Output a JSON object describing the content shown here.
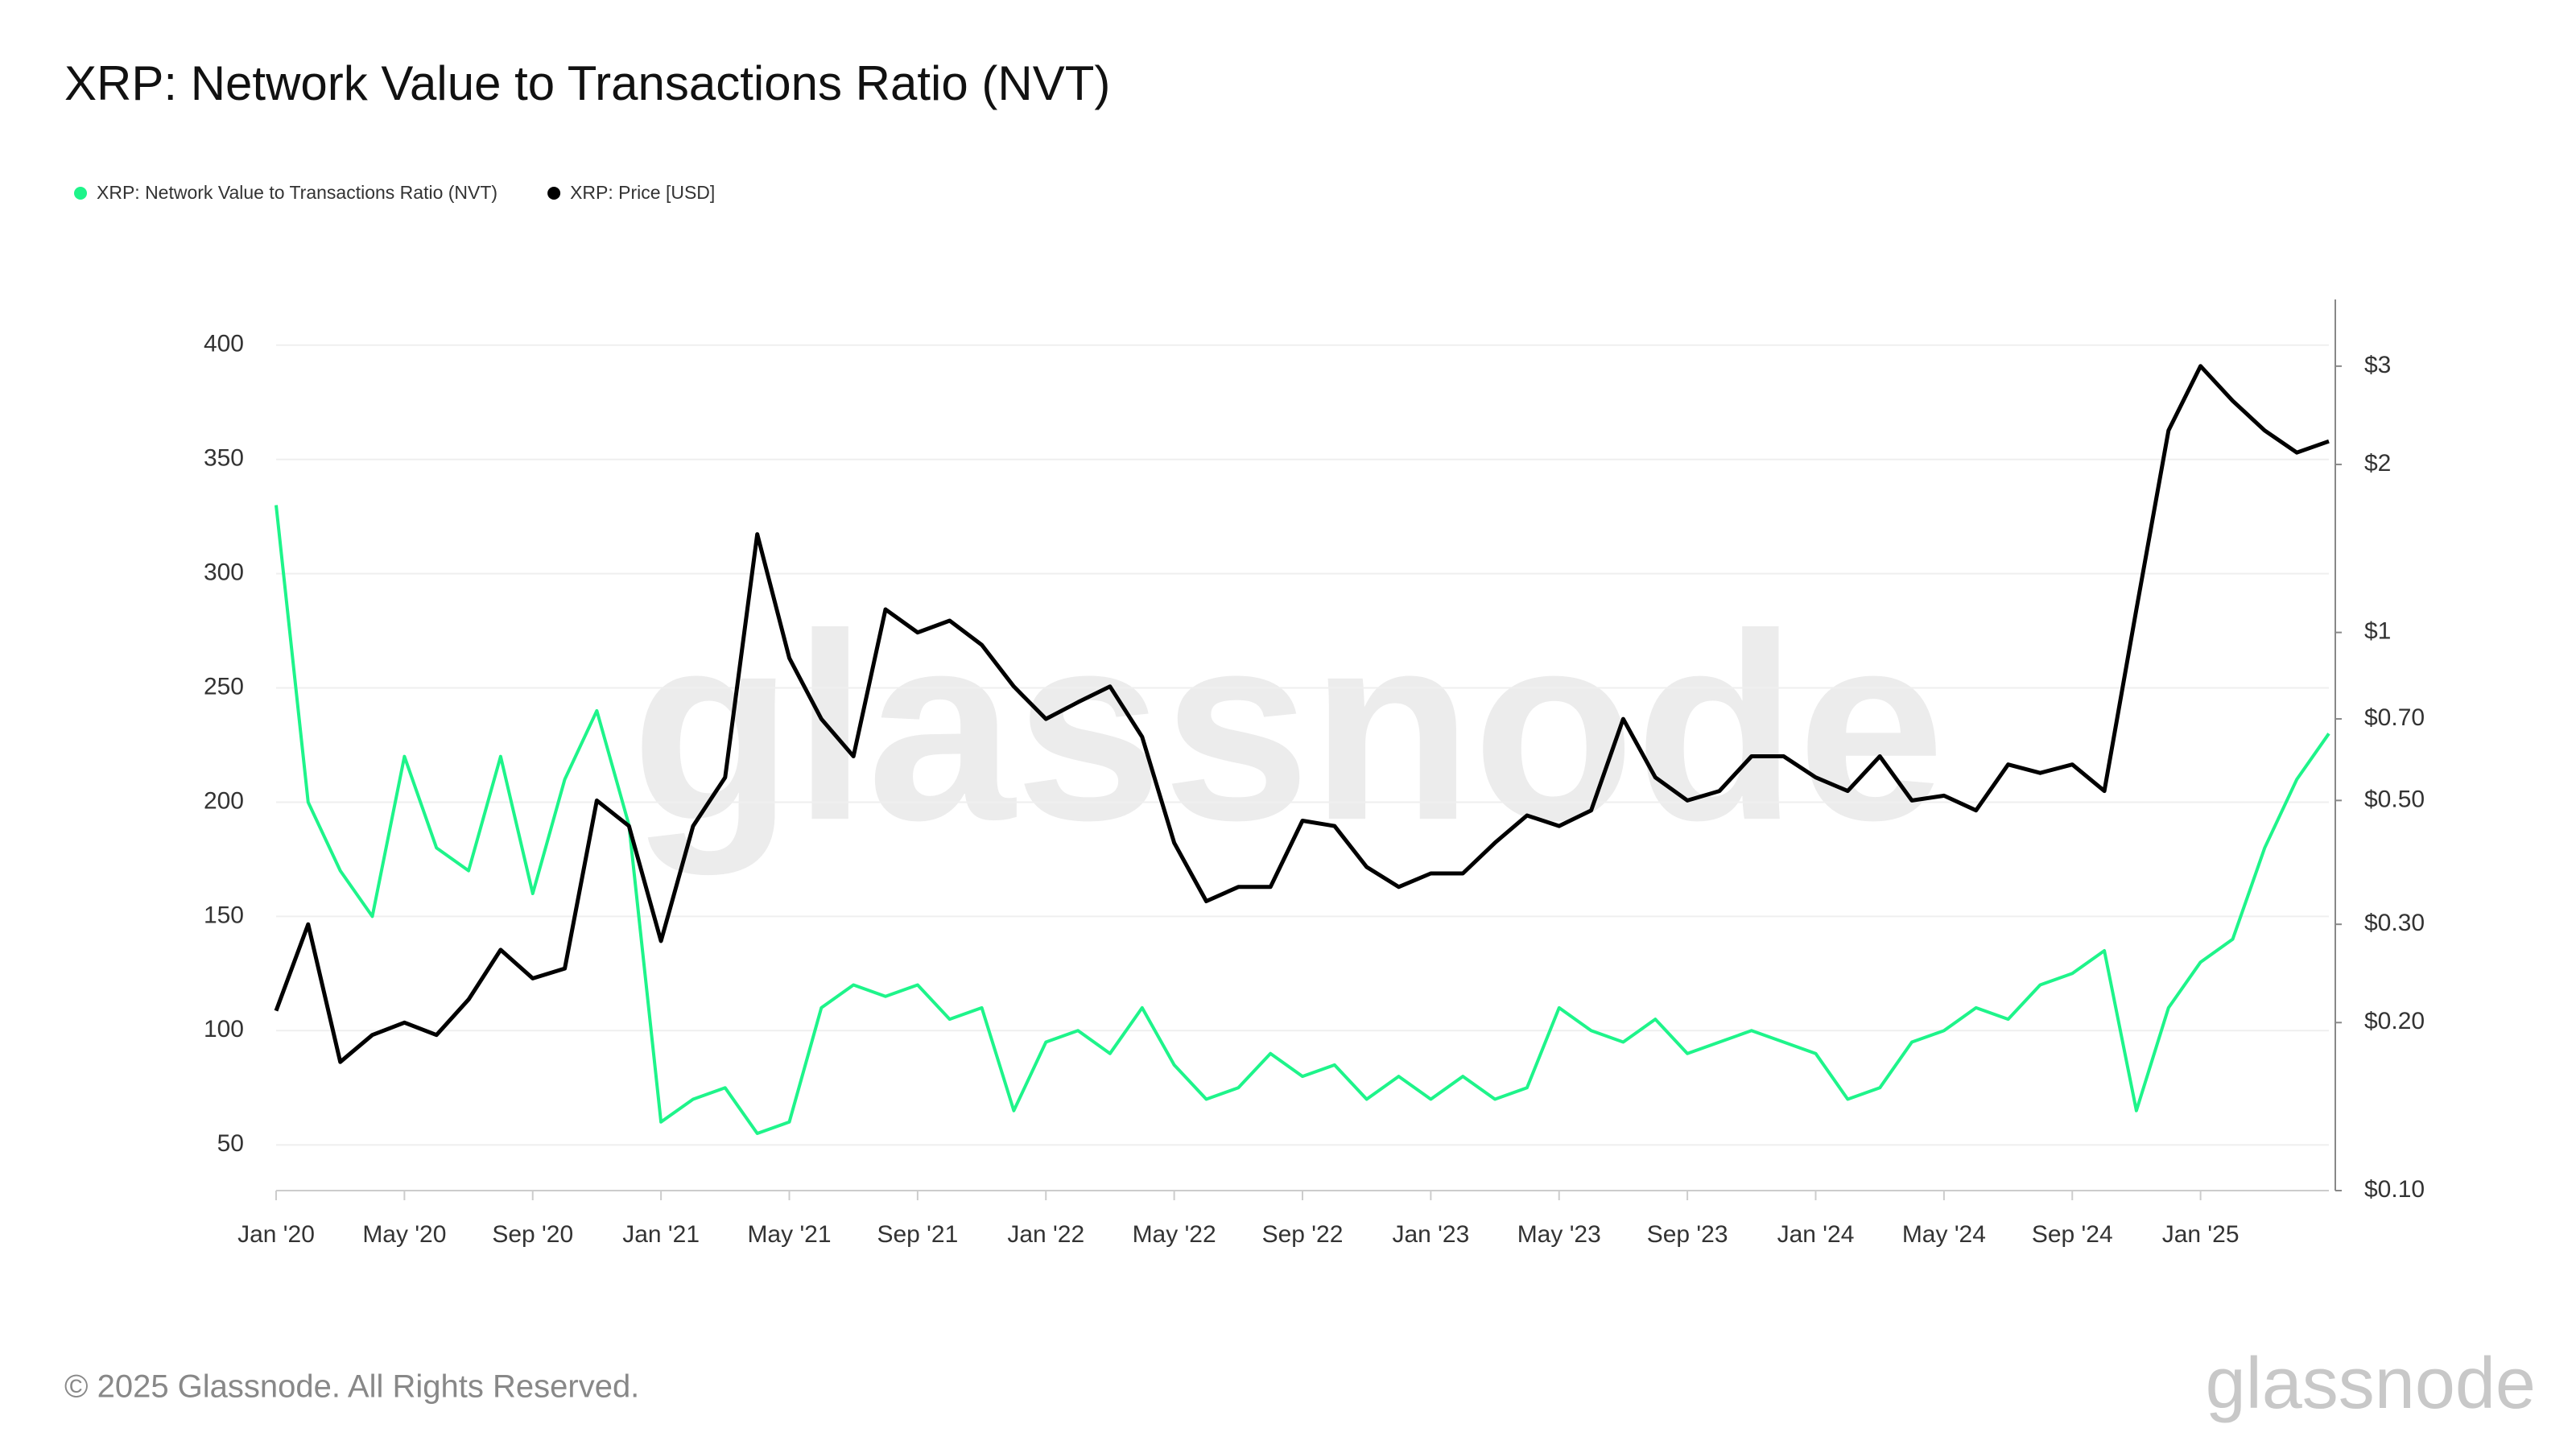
{
  "chart_data": {
    "type": "line",
    "title": "XRP: Network Value to Transactions Ratio (NVT)",
    "watermark": "glassnode",
    "footer": "© 2025 Glassnode. All Rights Reserved.",
    "logo": "glassnode",
    "x": [
      "2020-01",
      "2020-02",
      "2020-03",
      "2020-04",
      "2020-05",
      "2020-06",
      "2020-07",
      "2020-08",
      "2020-09",
      "2020-10",
      "2020-11",
      "2020-12",
      "2021-01",
      "2021-02",
      "2021-03",
      "2021-04",
      "2021-05",
      "2021-06",
      "2021-07",
      "2021-08",
      "2021-09",
      "2021-10",
      "2021-11",
      "2021-12",
      "2022-01",
      "2022-02",
      "2022-03",
      "2022-04",
      "2022-05",
      "2022-06",
      "2022-07",
      "2022-08",
      "2022-09",
      "2022-10",
      "2022-11",
      "2022-12",
      "2023-01",
      "2023-02",
      "2023-03",
      "2023-04",
      "2023-05",
      "2023-06",
      "2023-07",
      "2023-08",
      "2023-09",
      "2023-10",
      "2023-11",
      "2023-12",
      "2024-01",
      "2024-02",
      "2024-03",
      "2024-04",
      "2024-05",
      "2024-06",
      "2024-07",
      "2024-08",
      "2024-09",
      "2024-10",
      "2024-11",
      "2024-12",
      "2025-01",
      "2025-02",
      "2025-03",
      "2025-04",
      "2025-05"
    ],
    "xlim": [
      "2020-01",
      "2025-05"
    ],
    "xticks": [
      {
        "value": "2020-01",
        "label": "Jan '20"
      },
      {
        "value": "2020-05",
        "label": "May '20"
      },
      {
        "value": "2020-09",
        "label": "Sep '20"
      },
      {
        "value": "2021-01",
        "label": "Jan '21"
      },
      {
        "value": "2021-05",
        "label": "May '21"
      },
      {
        "value": "2021-09",
        "label": "Sep '21"
      },
      {
        "value": "2022-01",
        "label": "Jan '22"
      },
      {
        "value": "2022-05",
        "label": "May '22"
      },
      {
        "value": "2022-09",
        "label": "Sep '22"
      },
      {
        "value": "2023-01",
        "label": "Jan '23"
      },
      {
        "value": "2023-05",
        "label": "May '23"
      },
      {
        "value": "2023-09",
        "label": "Sep '23"
      },
      {
        "value": "2024-01",
        "label": "Jan '24"
      },
      {
        "value": "2024-05",
        "label": "May '24"
      },
      {
        "value": "2024-09",
        "label": "Sep '24"
      },
      {
        "value": "2025-01",
        "label": "Jan '25"
      }
    ],
    "ylim": [
      30,
      420
    ],
    "yticks": [
      50,
      100,
      150,
      200,
      250,
      300,
      350,
      400
    ],
    "y2lim": [
      0.1,
      3.95
    ],
    "y2scale": "log",
    "y2ticks": [
      {
        "value": 0.1,
        "label": "$0.10"
      },
      {
        "value": 0.2,
        "label": "$0.20"
      },
      {
        "value": 0.3,
        "label": "$0.30"
      },
      {
        "value": 0.5,
        "label": "$0.50"
      },
      {
        "value": 0.7,
        "label": "$0.70"
      },
      {
        "value": 1,
        "label": "$1"
      },
      {
        "value": 2,
        "label": "$2"
      },
      {
        "value": 3,
        "label": "$3"
      }
    ],
    "grid": true,
    "legend": "top-left",
    "series": [
      {
        "name": "XRP: Network Value to Transactions Ratio (NVT)",
        "color": "#1ef48a",
        "axis": "y",
        "values": [
          330,
          200,
          170,
          150,
          220,
          180,
          170,
          220,
          160,
          210,
          240,
          190,
          60,
          70,
          75,
          55,
          60,
          110,
          120,
          115,
          120,
          105,
          110,
          65,
          95,
          100,
          90,
          110,
          85,
          70,
          75,
          90,
          80,
          85,
          70,
          80,
          70,
          80,
          70,
          75,
          110,
          100,
          95,
          105,
          90,
          95,
          100,
          95,
          90,
          70,
          75,
          95,
          100,
          110,
          105,
          120,
          125,
          135,
          65,
          110,
          130,
          140,
          180,
          210,
          230
        ]
      },
      {
        "name": "XRP: Price [USD]",
        "color": "#000000",
        "axis": "y2",
        "values": [
          0.21,
          0.3,
          0.17,
          0.19,
          0.2,
          0.19,
          0.22,
          0.27,
          0.24,
          0.25,
          0.5,
          0.45,
          0.28,
          0.45,
          0.55,
          1.5,
          0.9,
          0.7,
          0.6,
          1.1,
          1.0,
          1.05,
          0.95,
          0.8,
          0.7,
          0.75,
          0.8,
          0.65,
          0.42,
          0.33,
          0.35,
          0.35,
          0.46,
          0.45,
          0.38,
          0.35,
          0.37,
          0.37,
          0.42,
          0.47,
          0.45,
          0.48,
          0.7,
          0.55,
          0.5,
          0.52,
          0.6,
          0.6,
          0.55,
          0.52,
          0.6,
          0.5,
          0.51,
          0.48,
          0.58,
          0.56,
          0.58,
          0.52,
          1.1,
          2.3,
          3.0,
          2.6,
          2.3,
          2.1,
          2.2
        ]
      }
    ]
  }
}
